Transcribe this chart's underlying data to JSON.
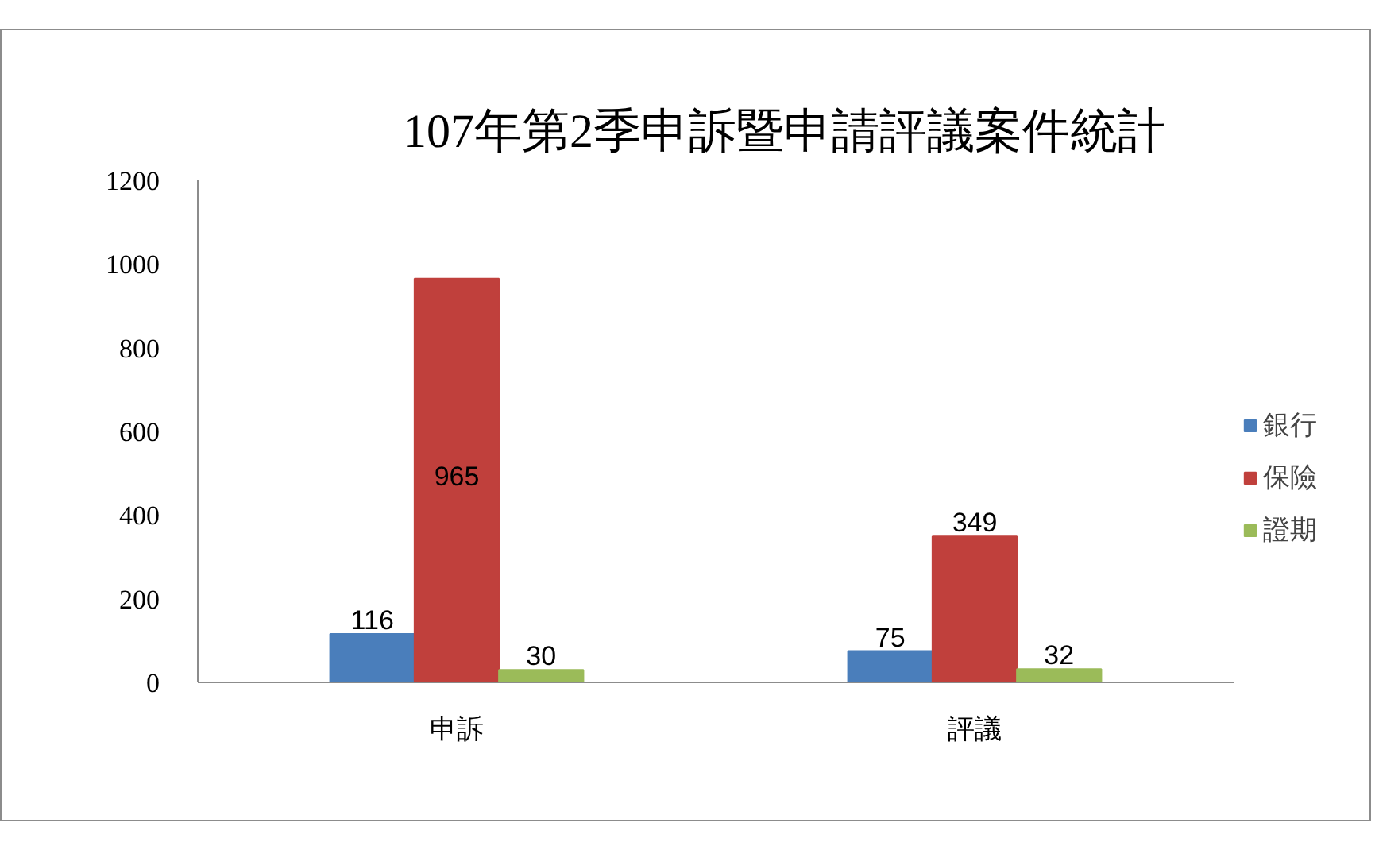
{
  "chart_data": {
    "type": "bar",
    "title": "107年第2季申訴暨申請評議案件統計",
    "categories": [
      "申訴",
      "評議"
    ],
    "series": [
      {
        "name": "銀行",
        "color": "#4a7ebb",
        "values": [
          116,
          75
        ]
      },
      {
        "name": "保險",
        "color": "#c0403c",
        "values": [
          965,
          349
        ]
      },
      {
        "name": "證期",
        "color": "#9bbb59",
        "values": [
          30,
          32
        ]
      }
    ],
    "ylim": [
      0,
      1200
    ],
    "yticks": [
      0,
      200,
      400,
      600,
      800,
      1000,
      1200
    ],
    "grid": false,
    "legend": "right",
    "data_labels": true
  }
}
